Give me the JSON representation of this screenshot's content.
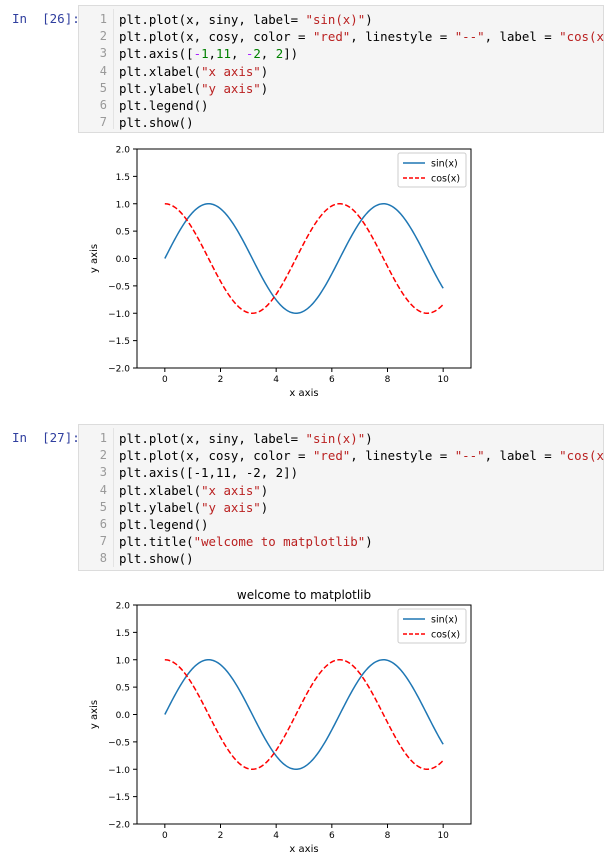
{
  "cells": [
    {
      "prompt_label": "In",
      "execution_count": "[26]:",
      "line_numbers": [
        "1",
        "2",
        "3",
        "4",
        "5",
        "6",
        "7"
      ],
      "lines": [
        [
          {
            "t": "plt.plot(x, siny, label= "
          },
          {
            "t": "\"sin(x)\"",
            "c": "str"
          },
          {
            "t": ")"
          }
        ],
        [
          {
            "t": "plt.plot(x, cosy, color = "
          },
          {
            "t": "\"red\"",
            "c": "str"
          },
          {
            "t": ", linestyle = "
          },
          {
            "t": "\"--\"",
            "c": "str"
          },
          {
            "t": ", label = "
          },
          {
            "t": "\"cos(x)\"",
            "c": "str"
          },
          {
            "t": ")"
          }
        ],
        [
          {
            "t": "plt.axis(["
          },
          {
            "t": "-",
            "c": "op"
          },
          {
            "t": "1",
            "c": "num"
          },
          {
            "t": ","
          },
          {
            "t": "11",
            "c": "num"
          },
          {
            "t": ", "
          },
          {
            "t": "-",
            "c": "op"
          },
          {
            "t": "2",
            "c": "num"
          },
          {
            "t": ", "
          },
          {
            "t": "2",
            "c": "num"
          },
          {
            "t": "])"
          }
        ],
        [
          {
            "t": "plt.xlabel("
          },
          {
            "t": "\"x axis\"",
            "c": "str"
          },
          {
            "t": ")"
          }
        ],
        [
          {
            "t": "plt.ylabel("
          },
          {
            "t": "\"y axis\"",
            "c": "str"
          },
          {
            "t": ")"
          }
        ],
        [
          {
            "t": "plt.legend()"
          }
        ],
        [
          {
            "t": "plt.show()"
          }
        ]
      ]
    },
    {
      "prompt_label": "In",
      "execution_count": "[27]:",
      "line_numbers": [
        "1",
        "2",
        "3",
        "4",
        "5",
        "6",
        "7",
        "8"
      ],
      "lines": [
        [
          {
            "t": "plt.plot(x, siny, label= "
          },
          {
            "t": "\"sin(x)\"",
            "c": "str"
          },
          {
            "t": ")"
          }
        ],
        [
          {
            "t": "plt.plot(x, cosy, color = "
          },
          {
            "t": "\"red\"",
            "c": "str"
          },
          {
            "t": ", linestyle = "
          },
          {
            "t": "\"--\"",
            "c": "str"
          },
          {
            "t": ", label = "
          },
          {
            "t": "\"cos(x)\"",
            "c": "str"
          },
          {
            "t": ")"
          }
        ],
        [
          {
            "t": "plt.axis([-1,11, -2, 2])"
          }
        ],
        [
          {
            "t": "plt.xlabel("
          },
          {
            "t": "\"x axis\"",
            "c": "str"
          },
          {
            "t": ")"
          }
        ],
        [
          {
            "t": "plt.ylabel("
          },
          {
            "t": "\"y axis\"",
            "c": "str"
          },
          {
            "t": ")"
          }
        ],
        [
          {
            "t": "plt.legend()"
          }
        ],
        [
          {
            "t": "plt.title("
          },
          {
            "t": "\"welcome to matplotlib\"",
            "c": "str"
          },
          {
            "t": ")"
          }
        ],
        [
          {
            "t": "plt.show()"
          }
        ]
      ]
    }
  ],
  "chart_data": [
    {
      "type": "line",
      "title": "",
      "xlabel": "x axis",
      "ylabel": "y axis",
      "xlim": [
        -1,
        11
      ],
      "ylim": [
        -2,
        2
      ],
      "xticks": [
        "0",
        "2",
        "4",
        "6",
        "8",
        "10"
      ],
      "yticks": [
        "2.0",
        "1.5",
        "1.0",
        "0.5",
        "0.0",
        "−0.5",
        "−1.0",
        "−1.5",
        "−2.0"
      ],
      "legend_position": "top-right",
      "grid": false,
      "series": [
        {
          "name": "sin(x)",
          "function": "sin",
          "x_range": [
            0,
            10
          ],
          "color": "#1f77b4",
          "linestyle": "solid"
        },
        {
          "name": "cos(x)",
          "function": "cos",
          "x_range": [
            0,
            10
          ],
          "color": "#ff0000",
          "linestyle": "dashed"
        }
      ]
    },
    {
      "type": "line",
      "title": "welcome to matplotlib",
      "xlabel": "x axis",
      "ylabel": "y axis",
      "xlim": [
        -1,
        11
      ],
      "ylim": [
        -2,
        2
      ],
      "xticks": [
        "0",
        "2",
        "4",
        "6",
        "8",
        "10"
      ],
      "yticks": [
        "2.0",
        "1.5",
        "1.0",
        "0.5",
        "0.0",
        "−0.5",
        "−1.0",
        "−1.5",
        "−2.0"
      ],
      "legend_position": "top-right",
      "grid": false,
      "series": [
        {
          "name": "sin(x)",
          "function": "sin",
          "x_range": [
            0,
            10
          ],
          "color": "#1f77b4",
          "linestyle": "solid"
        },
        {
          "name": "cos(x)",
          "function": "cos",
          "x_range": [
            0,
            10
          ],
          "color": "#ff0000",
          "linestyle": "dashed"
        }
      ]
    }
  ]
}
